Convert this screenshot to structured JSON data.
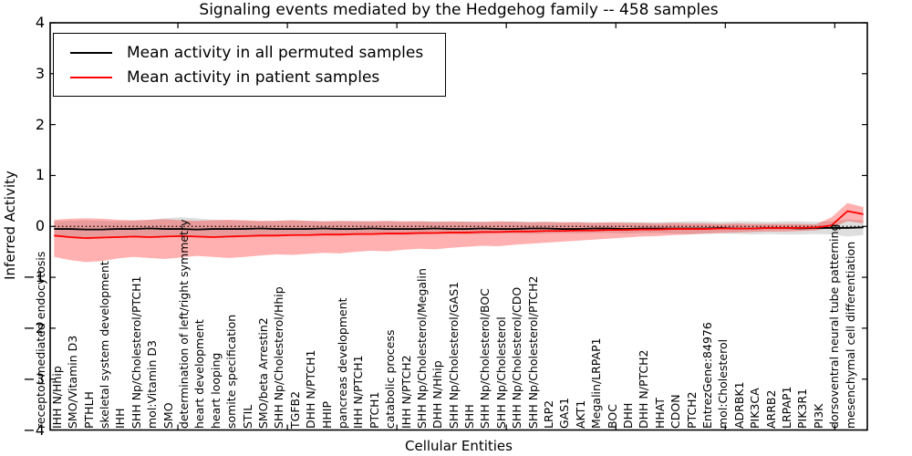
{
  "figure": {
    "background": "#ffffff"
  },
  "chart_data": {
    "type": "line",
    "title": "Signaling events mediated by the Hedgehog family -- 458 samples",
    "xlabel": "Cellular Entities",
    "ylabel": "Inferred Activity",
    "ylim": [
      -4,
      4
    ],
    "yticks": [
      4,
      3,
      2,
      1,
      0,
      -1,
      -2,
      -3,
      -4
    ],
    "ytick_labels": [
      "4",
      "3",
      "2",
      "1",
      "0",
      "−1",
      "−2",
      "−3",
      "−4"
    ],
    "xtick_mark_positions": [
      7.8,
      14.7,
      21.6,
      28.5,
      35.4,
      42.3,
      49.2
    ],
    "grid": false,
    "legend_position": "upper left",
    "zero_line": {
      "style": "dotted",
      "color": "#000000",
      "value": 0
    },
    "categories": [
      "receptor-mediated endocytosis",
      "IHH N/Hhip",
      "SMO/Vitamin D3",
      "PTHLH",
      "skeletal system development",
      "IHH",
      "SHH Np/Cholesterol/PTCH1",
      "mol:Vitamin D3",
      "SMO",
      "determination of left/right symmetry",
      "heart development",
      "heart looping",
      "somite specification",
      "STIL",
      "SMO/beta Arrestin2",
      "SHH Np/Cholesterol/Hhip",
      "TGFB2",
      "DHH N/PTCH1",
      "HHIP",
      "pancreas development",
      "IHH N/PTCH1",
      "PTCH1",
      "catabolic process",
      "IHH N/PTCH2",
      "SHH Np/Cholesterol/Megalin",
      "DHH N/Hhip",
      "SHH Np/Cholesterol/GAS1",
      "SHH",
      "SHH Np/Cholesterol/BOC",
      "SHH Np/Cholesterol",
      "SHH Np/Cholesterol/CDO",
      "SHH Np/Cholesterol/PTCH2",
      "LRP2",
      "GAS1",
      "AKT1",
      "Megalin/LRPAP1",
      "BOC",
      "DHH",
      "DHH N/PTCH2",
      "HHAT",
      "CDON",
      "PTCH2",
      "EntrezGene:84976",
      "mol:Cholesterol",
      "ADRBK1",
      "PIK3CA",
      "ARRB2",
      "LRPAP1",
      "PIK3R1",
      "PI3K",
      "dorsoventral neural tube patterning",
      "mesenchymal cell differentiation"
    ],
    "series": [
      {
        "name": "Mean activity in all permuted samples",
        "color": "#000000",
        "values": [
          -0.05,
          -0.05,
          -0.06,
          -0.06,
          -0.05,
          -0.05,
          -0.04,
          -0.05,
          -0.05,
          -0.06,
          -0.05,
          -0.05,
          -0.05,
          -0.04,
          -0.05,
          -0.05,
          -0.05,
          -0.04,
          -0.05,
          -0.05,
          -0.04,
          -0.05,
          -0.05,
          -0.05,
          -0.04,
          -0.05,
          -0.05,
          -0.04,
          -0.05,
          -0.05,
          -0.04,
          -0.04,
          -0.05,
          -0.05,
          -0.04,
          -0.04,
          -0.05,
          -0.04,
          -0.04,
          -0.04,
          -0.04,
          -0.04,
          -0.03,
          -0.04,
          -0.04,
          -0.03,
          -0.03,
          -0.04,
          -0.03,
          -0.03,
          -0.03,
          -0.02
        ]
      },
      {
        "name": "Mean activity in patient samples",
        "color": "#ff0000",
        "values": [
          -0.18,
          -0.21,
          -0.23,
          -0.22,
          -0.21,
          -0.2,
          -0.21,
          -0.2,
          -0.19,
          -0.2,
          -0.21,
          -0.2,
          -0.19,
          -0.18,
          -0.18,
          -0.17,
          -0.17,
          -0.16,
          -0.16,
          -0.15,
          -0.15,
          -0.14,
          -0.14,
          -0.13,
          -0.13,
          -0.12,
          -0.12,
          -0.11,
          -0.11,
          -0.1,
          -0.1,
          -0.09,
          -0.09,
          -0.08,
          -0.08,
          -0.07,
          -0.07,
          -0.06,
          -0.06,
          -0.05,
          -0.05,
          -0.05,
          -0.04,
          -0.04,
          -0.04,
          -0.03,
          -0.03,
          -0.03,
          -0.02,
          0.02,
          0.3,
          0.24
        ]
      }
    ],
    "bands": [
      {
        "name": "permuted-range",
        "series": "Mean activity in all permuted samples",
        "color": "#999999",
        "opacity": 0.32,
        "upper": [
          0.1,
          0.11,
          0.12,
          0.11,
          0.1,
          0.11,
          0.13,
          0.16,
          0.18,
          0.16,
          0.13,
          0.12,
          0.11,
          0.1,
          0.11,
          0.12,
          0.11,
          0.1,
          0.1,
          0.11,
          0.1,
          0.1,
          0.09,
          0.1,
          0.1,
          0.09,
          0.1,
          0.09,
          0.09,
          0.1,
          0.09,
          0.09,
          0.08,
          0.09,
          0.08,
          0.08,
          0.09,
          0.08,
          0.08,
          0.09,
          0.1,
          0.1,
          0.09,
          0.1,
          0.1,
          0.09,
          0.1,
          0.1,
          0.09,
          0.1,
          0.14,
          0.12
        ],
        "lower": [
          -0.2,
          -0.21,
          -0.22,
          -0.21,
          -0.2,
          -0.2,
          -0.19,
          -0.2,
          -0.21,
          -0.2,
          -0.19,
          -0.19,
          -0.18,
          -0.18,
          -0.19,
          -0.18,
          -0.17,
          -0.17,
          -0.18,
          -0.17,
          -0.16,
          -0.16,
          -0.17,
          -0.16,
          -0.15,
          -0.15,
          -0.16,
          -0.15,
          -0.14,
          -0.14,
          -0.15,
          -0.14,
          -0.13,
          -0.14,
          -0.13,
          -0.13,
          -0.14,
          -0.13,
          -0.13,
          -0.14,
          -0.15,
          -0.15,
          -0.14,
          -0.15,
          -0.16,
          -0.15,
          -0.16,
          -0.16,
          -0.15,
          -0.16,
          -0.2,
          -0.17
        ]
      },
      {
        "name": "patient-range",
        "series": "Mean activity in patient samples",
        "color": "#ff2020",
        "opacity": 0.35,
        "upper": [
          0.13,
          0.15,
          0.16,
          0.15,
          0.13,
          0.12,
          0.13,
          0.14,
          0.12,
          0.11,
          0.12,
          0.13,
          0.12,
          0.11,
          0.11,
          0.12,
          0.11,
          0.1,
          0.11,
          0.1,
          0.1,
          0.11,
          0.1,
          0.1,
          0.09,
          0.1,
          0.09,
          0.09,
          0.1,
          0.09,
          0.08,
          0.09,
          0.08,
          0.08,
          0.07,
          0.08,
          0.07,
          0.07,
          0.06,
          0.07,
          0.06,
          0.06,
          0.05,
          0.06,
          0.05,
          0.05,
          0.05,
          0.05,
          0.04,
          0.18,
          0.46,
          0.38
        ],
        "lower": [
          -0.6,
          -0.66,
          -0.7,
          -0.68,
          -0.63,
          -0.6,
          -0.62,
          -0.64,
          -0.61,
          -0.58,
          -0.6,
          -0.62,
          -0.6,
          -0.57,
          -0.55,
          -0.56,
          -0.54,
          -0.52,
          -0.53,
          -0.5,
          -0.48,
          -0.49,
          -0.46,
          -0.44,
          -0.45,
          -0.42,
          -0.4,
          -0.38,
          -0.39,
          -0.36,
          -0.34,
          -0.32,
          -0.3,
          -0.28,
          -0.26,
          -0.24,
          -0.22,
          -0.2,
          -0.19,
          -0.17,
          -0.16,
          -0.14,
          -0.13,
          -0.12,
          -0.11,
          -0.1,
          -0.1,
          -0.09,
          -0.08,
          -0.02,
          0.1,
          0.06
        ]
      }
    ]
  }
}
